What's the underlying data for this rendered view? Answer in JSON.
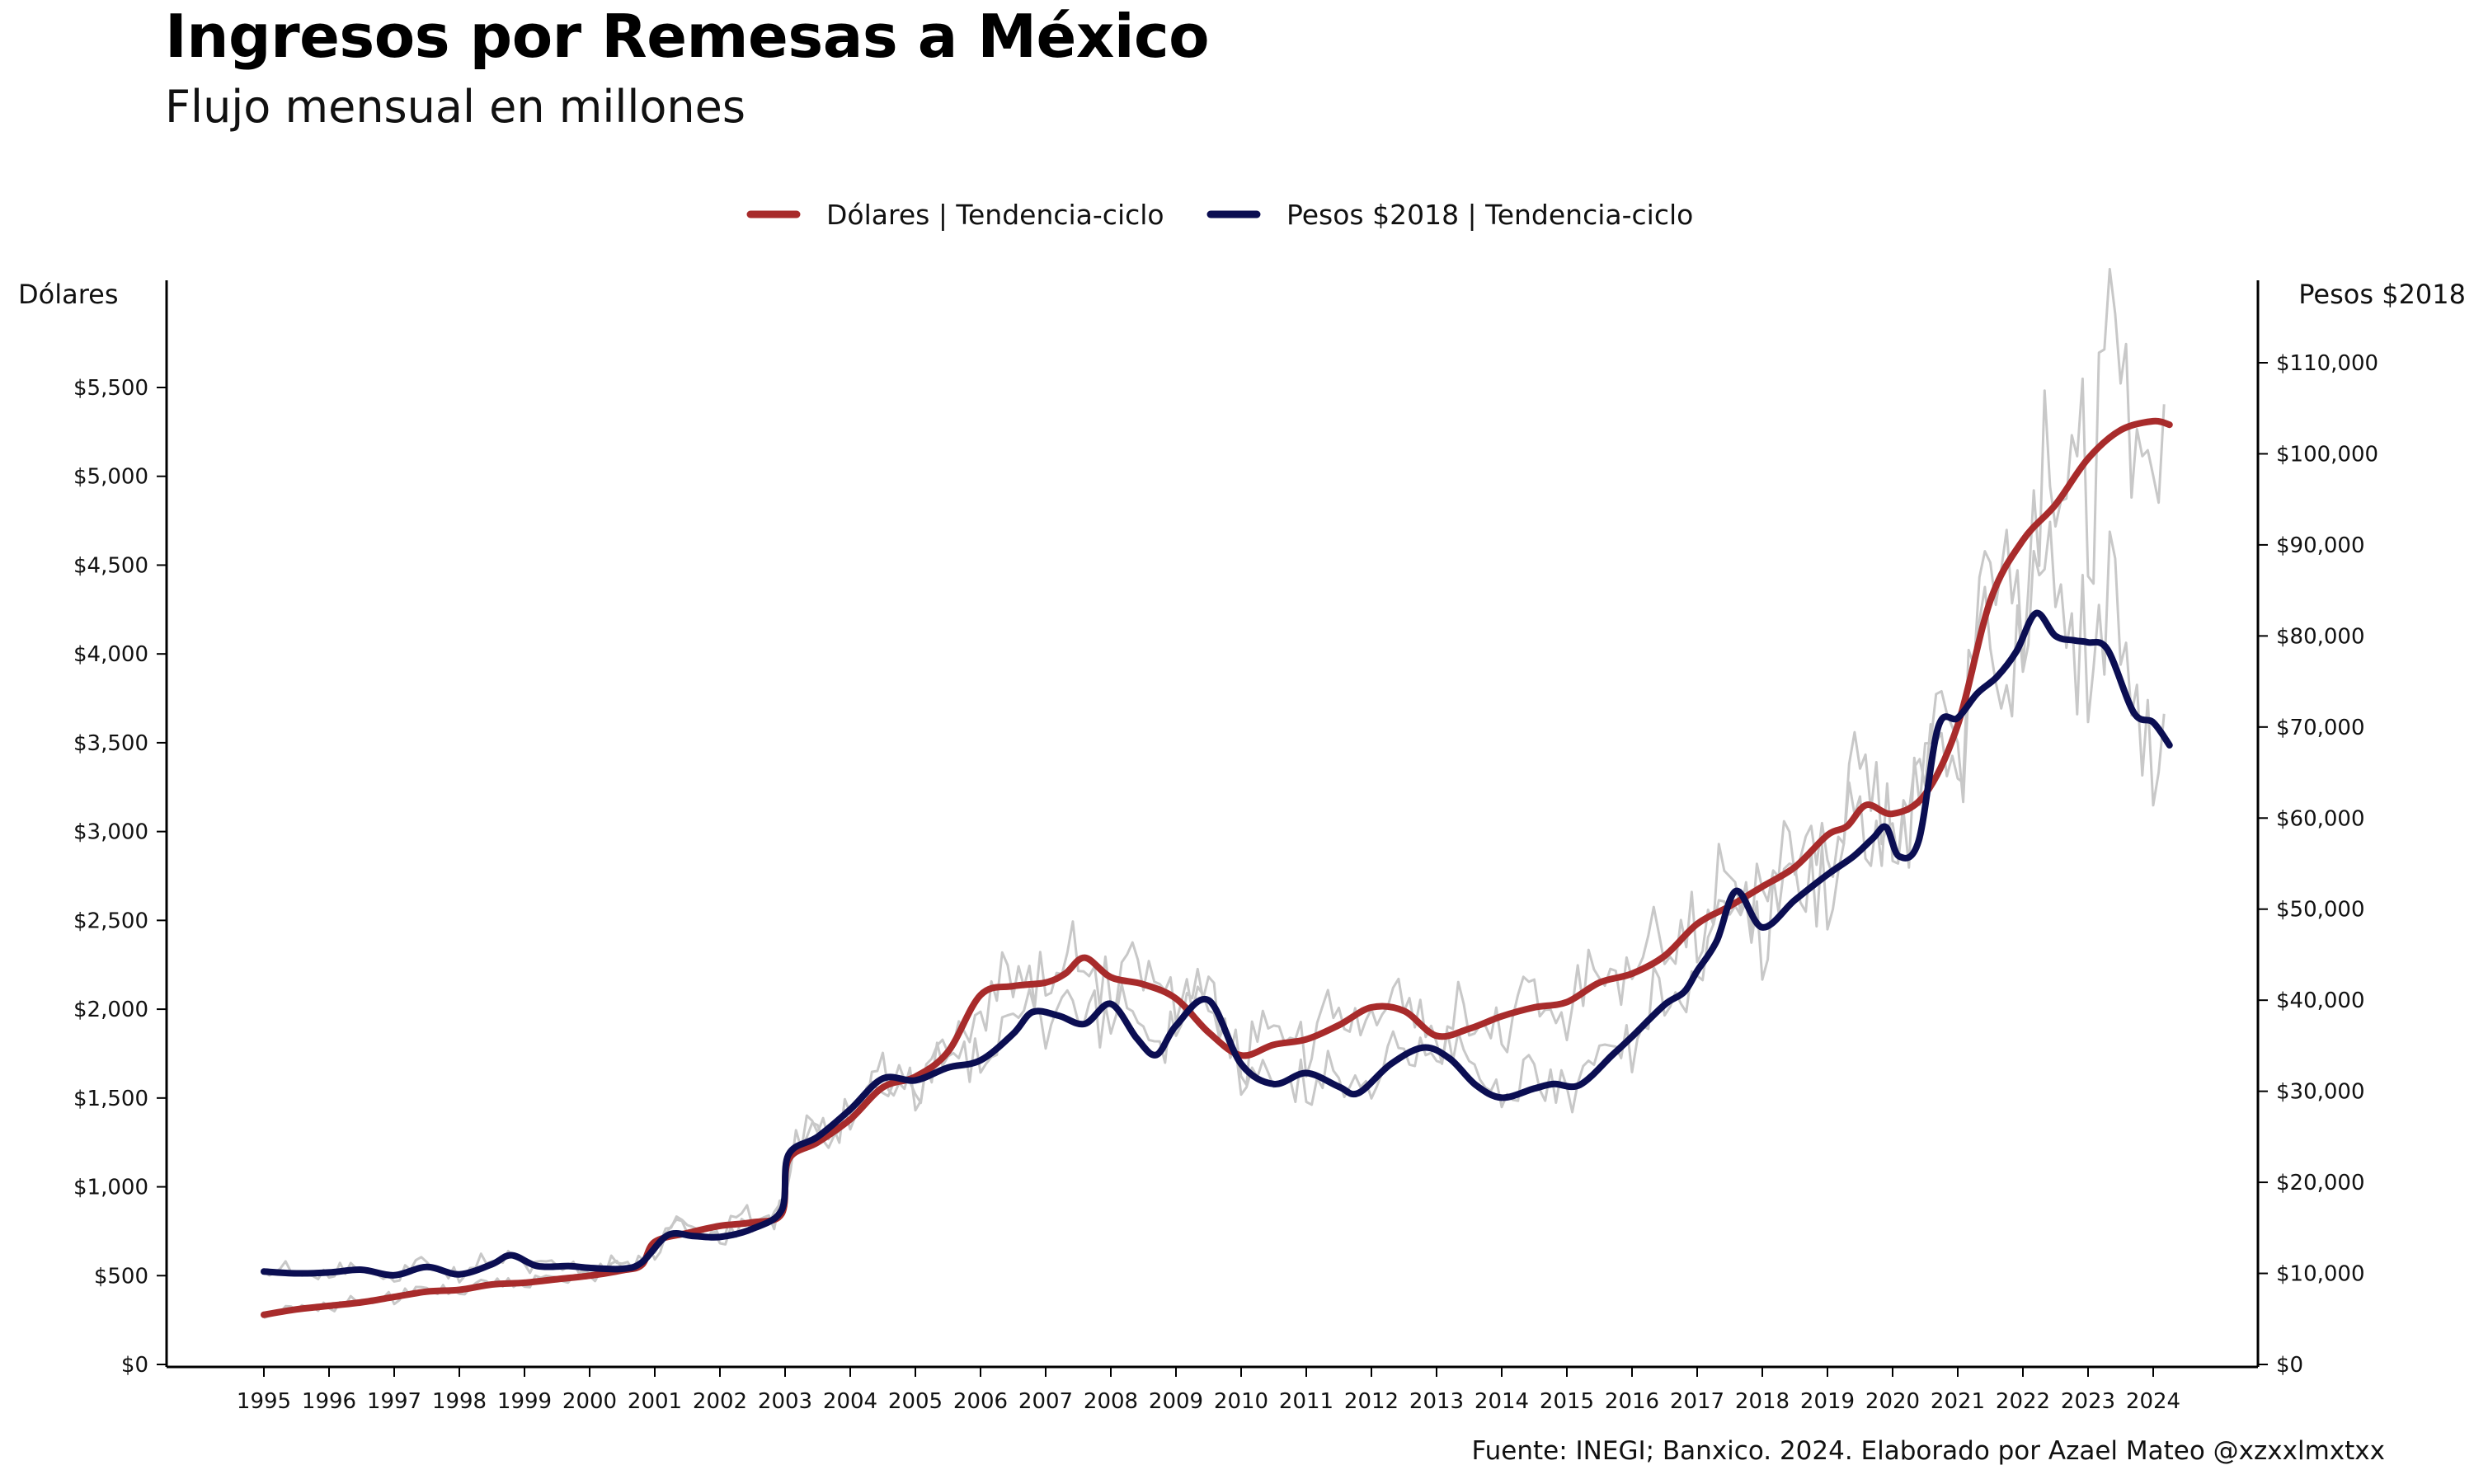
{
  "header": {
    "title": "Ingresos por Remesas a México",
    "subtitle": "Flujo mensual en millones"
  },
  "footer": {
    "source": "Fuente: INEGI; Banxico. 2024. Elaborado por Azael Mateo @xzxxlmxtxx"
  },
  "colors": {
    "dollars": "#A82B2B",
    "pesos": "#0B0E52",
    "raw": "#C8C8C8",
    "axis": "#000000"
  },
  "chart_data": {
    "type": "line",
    "title": "Ingresos por Remesas a México",
    "subtitle": "Flujo mensual en millones",
    "legend": {
      "position": "top-center",
      "entries": [
        "Dólares | Tendencia-ciclo",
        "Pesos $2018 | Tendencia-ciclo"
      ]
    },
    "grid": false,
    "x_axis": {
      "ticks": [
        "1995",
        "1996",
        "1997",
        "1998",
        "1999",
        "2000",
        "2001",
        "2002",
        "2003",
        "2004",
        "2005",
        "2006",
        "2007",
        "2008",
        "2009",
        "2010",
        "2011",
        "2012",
        "2013",
        "2014",
        "2015",
        "2016",
        "2017",
        "2018",
        "2019",
        "2020",
        "2021",
        "2022",
        "2023",
        "2024"
      ],
      "range": [
        1994.5,
        2025.3
      ]
    },
    "y_axis_left": {
      "label": "Dólares",
      "range": [
        0,
        5700
      ],
      "ticks": [
        0,
        500,
        1000,
        1500,
        2000,
        2500,
        3000,
        3500,
        4000,
        4500,
        5000,
        5500
      ],
      "tick_labels": [
        "$0",
        "$500",
        "$1,000",
        "$1,500",
        "$2,000",
        "$2,500",
        "$3,000",
        "$3,500",
        "$4,000",
        "$4,500",
        "$5,000",
        "$5,500"
      ]
    },
    "y_axis_right": {
      "label": "Pesos $2018",
      "range": [
        0,
        114000
      ],
      "ticks": [
        0,
        10000,
        20000,
        30000,
        40000,
        50000,
        60000,
        70000,
        80000,
        90000,
        100000,
        110000
      ],
      "tick_labels": [
        "$0",
        "$10,000",
        "$20,000",
        "$30,000",
        "$40,000",
        "$50,000",
        "$60,000",
        "$70,000",
        "$80,000",
        "$90,000",
        "$100,000",
        "$110,000"
      ]
    },
    "series": [
      {
        "name": "Dólares | Tendencia-ciclo",
        "axis": "left",
        "x": [
          1995.0,
          1995.5,
          1996.0,
          1996.5,
          1997.0,
          1997.5,
          1998.0,
          1998.5,
          1999.0,
          1999.5,
          2000.0,
          2000.5,
          2000.8,
          2001.0,
          2001.5,
          2002.0,
          2002.5,
          2002.95,
          2003.05,
          2003.5,
          2004.0,
          2004.5,
          2005.0,
          2005.5,
          2006.0,
          2006.5,
          2007.0,
          2007.3,
          2007.6,
          2008.0,
          2008.5,
          2009.0,
          2009.5,
          2010.0,
          2010.5,
          2011.0,
          2011.5,
          2012.0,
          2012.5,
          2013.0,
          2013.5,
          2014.0,
          2014.5,
          2015.0,
          2015.5,
          2016.0,
          2016.5,
          2017.0,
          2017.5,
          2018.0,
          2018.5,
          2019.0,
          2019.3,
          2019.6,
          2020.0,
          2020.5,
          2021.0,
          2021.5,
          2022.0,
          2022.5,
          2023.0,
          2023.5,
          2024.0,
          2024.25
        ],
        "values": [
          280,
          310,
          330,
          350,
          380,
          410,
          420,
          450,
          460,
          480,
          500,
          530,
          560,
          690,
          740,
          780,
          800,
          850,
          1150,
          1250,
          1380,
          1560,
          1620,
          1760,
          2080,
          2130,
          2150,
          2200,
          2290,
          2180,
          2140,
          2060,
          1870,
          1740,
          1800,
          1830,
          1910,
          2010,
          1990,
          1850,
          1890,
          1960,
          2010,
          2040,
          2150,
          2200,
          2300,
          2480,
          2580,
          2690,
          2800,
          2980,
          3030,
          3150,
          3100,
          3210,
          3600,
          4300,
          4640,
          4840,
          5100,
          5260,
          5310,
          5290
        ]
      },
      {
        "name": "Pesos $2018 | Tendencia-ciclo",
        "axis": "right",
        "x": [
          1995.0,
          1995.5,
          1996.0,
          1996.5,
          1997.0,
          1997.5,
          1998.0,
          1998.5,
          1998.8,
          1999.2,
          1999.7,
          2000.0,
          2000.5,
          2000.8,
          2001.2,
          2001.6,
          2002.0,
          2002.5,
          2002.95,
          2003.05,
          2003.5,
          2004.0,
          2004.5,
          2005.0,
          2005.5,
          2006.0,
          2006.5,
          2006.8,
          2007.2,
          2007.6,
          2008.0,
          2008.4,
          2008.7,
          2009.0,
          2009.5,
          2010.0,
          2010.5,
          2011.0,
          2011.5,
          2011.8,
          2012.3,
          2012.8,
          2013.2,
          2013.6,
          2014.0,
          2014.5,
          2014.8,
          2015.2,
          2015.7,
          2016.0,
          2016.5,
          2016.8,
          2017.0,
          2017.3,
          2017.6,
          2018.0,
          2018.5,
          2019.0,
          2019.4,
          2019.7,
          2019.9,
          2020.1,
          2020.4,
          2020.7,
          2021.0,
          2021.3,
          2021.6,
          2021.9,
          2022.2,
          2022.5,
          2022.8,
          2023.0,
          2023.3,
          2023.7,
          2024.0,
          2024.25
        ],
        "values": [
          10200,
          10000,
          10100,
          10400,
          9800,
          10700,
          9900,
          11000,
          12000,
          10800,
          10800,
          10600,
          10500,
          11200,
          14200,
          14100,
          14000,
          14900,
          17000,
          23000,
          25000,
          28000,
          31400,
          31200,
          32600,
          33400,
          36300,
          38700,
          38300,
          37400,
          39600,
          35800,
          34000,
          37200,
          40000,
          33000,
          30800,
          32000,
          30500,
          29800,
          33000,
          34800,
          33600,
          30700,
          29300,
          30300,
          30800,
          30700,
          34000,
          36000,
          39500,
          40900,
          43200,
          46500,
          52000,
          48000,
          51000,
          53800,
          55800,
          57800,
          59000,
          55800,
          57500,
          70000,
          71000,
          73700,
          75500,
          78300,
          82500,
          80000,
          79500,
          79300,
          78500,
          71600,
          70500,
          68000
        ]
      }
    ]
  }
}
